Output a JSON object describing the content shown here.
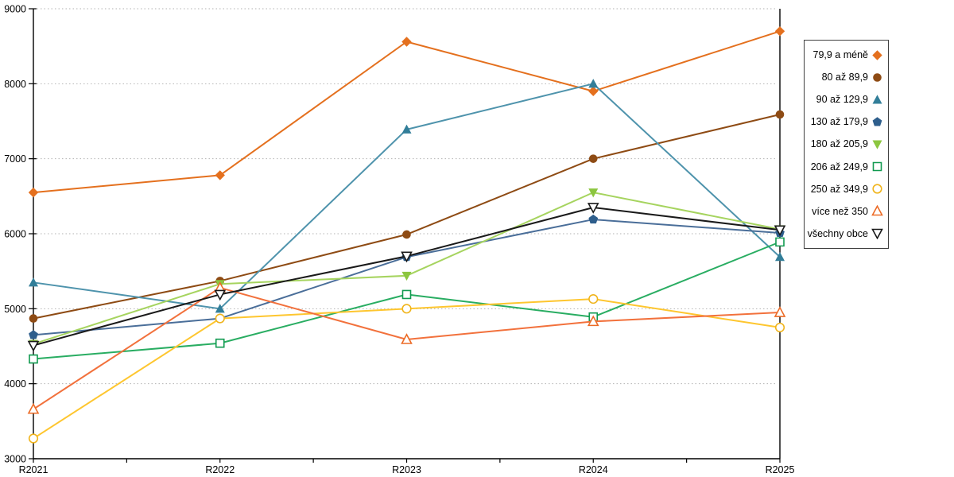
{
  "chart_data": {
    "type": "line",
    "title": "",
    "xlabel": "",
    "ylabel": "",
    "categories": [
      "R2021",
      "R2022",
      "R2023",
      "R2024",
      "R2025"
    ],
    "y_axis": {
      "min": 3000,
      "max": 9000,
      "tick_step": 1000,
      "tick_labels": [
        "3000",
        "4000",
        "5000",
        "6000",
        "7000",
        "8000",
        "9000"
      ]
    },
    "grid": {
      "horizontal": true,
      "style": "dotted",
      "color": "#b2b2b2"
    },
    "legend_position": "right-outside",
    "series": [
      {
        "name": "79,9 a méně",
        "marker": "diamond",
        "filled": true,
        "color": "#E4701E",
        "marker_color": "#E4701E",
        "values": [
          6550,
          6780,
          8560,
          7900,
          8700
        ]
      },
      {
        "name": "80 až 89,9",
        "marker": "circle",
        "filled": true,
        "color": "#8E4B14",
        "marker_color": "#8E4B14",
        "values": [
          4870,
          5370,
          5990,
          7000,
          7590
        ]
      },
      {
        "name": "90 až 129,9",
        "marker": "triangle-up",
        "filled": true,
        "color": "#4E93AC",
        "marker_color": "#327E99",
        "values": [
          5350,
          5000,
          7390,
          8000,
          5690
        ]
      },
      {
        "name": "130 až 179,9",
        "marker": "pentagon",
        "filled": true,
        "color": "#4A6E99",
        "marker_color": "#2E5E8C",
        "values": [
          4650,
          4870,
          5690,
          6190,
          6010
        ]
      },
      {
        "name": "180 až 205,9",
        "marker": "triangle-down",
        "filled": true,
        "color": "#A6D45F",
        "marker_color": "#8CC63F",
        "values": [
          4530,
          5330,
          5440,
          6550,
          6060
        ]
      },
      {
        "name": "206 až 249,9",
        "marker": "square",
        "filled": false,
        "color": "#29AD62",
        "marker_color": "#119A50",
        "values": [
          4330,
          4540,
          5190,
          4890,
          5890
        ]
      },
      {
        "name": "250 až 349,9",
        "marker": "circle",
        "filled": false,
        "color": "#FEC62F",
        "marker_color": "#F0B41C",
        "values": [
          3270,
          4870,
          5000,
          5130,
          4750
        ]
      },
      {
        "name": "více než 350",
        "marker": "triangle-up",
        "filled": false,
        "color": "#F2713C",
        "marker_color": "#EC6B26",
        "values": [
          3660,
          5280,
          4590,
          4830,
          4950
        ]
      },
      {
        "name": "všechny obce",
        "marker": "triangle-down",
        "filled": false,
        "color": "#1A1A1A",
        "marker_color": "#1A1A1A",
        "values": [
          4510,
          5190,
          5700,
          6350,
          6050
        ]
      }
    ]
  }
}
